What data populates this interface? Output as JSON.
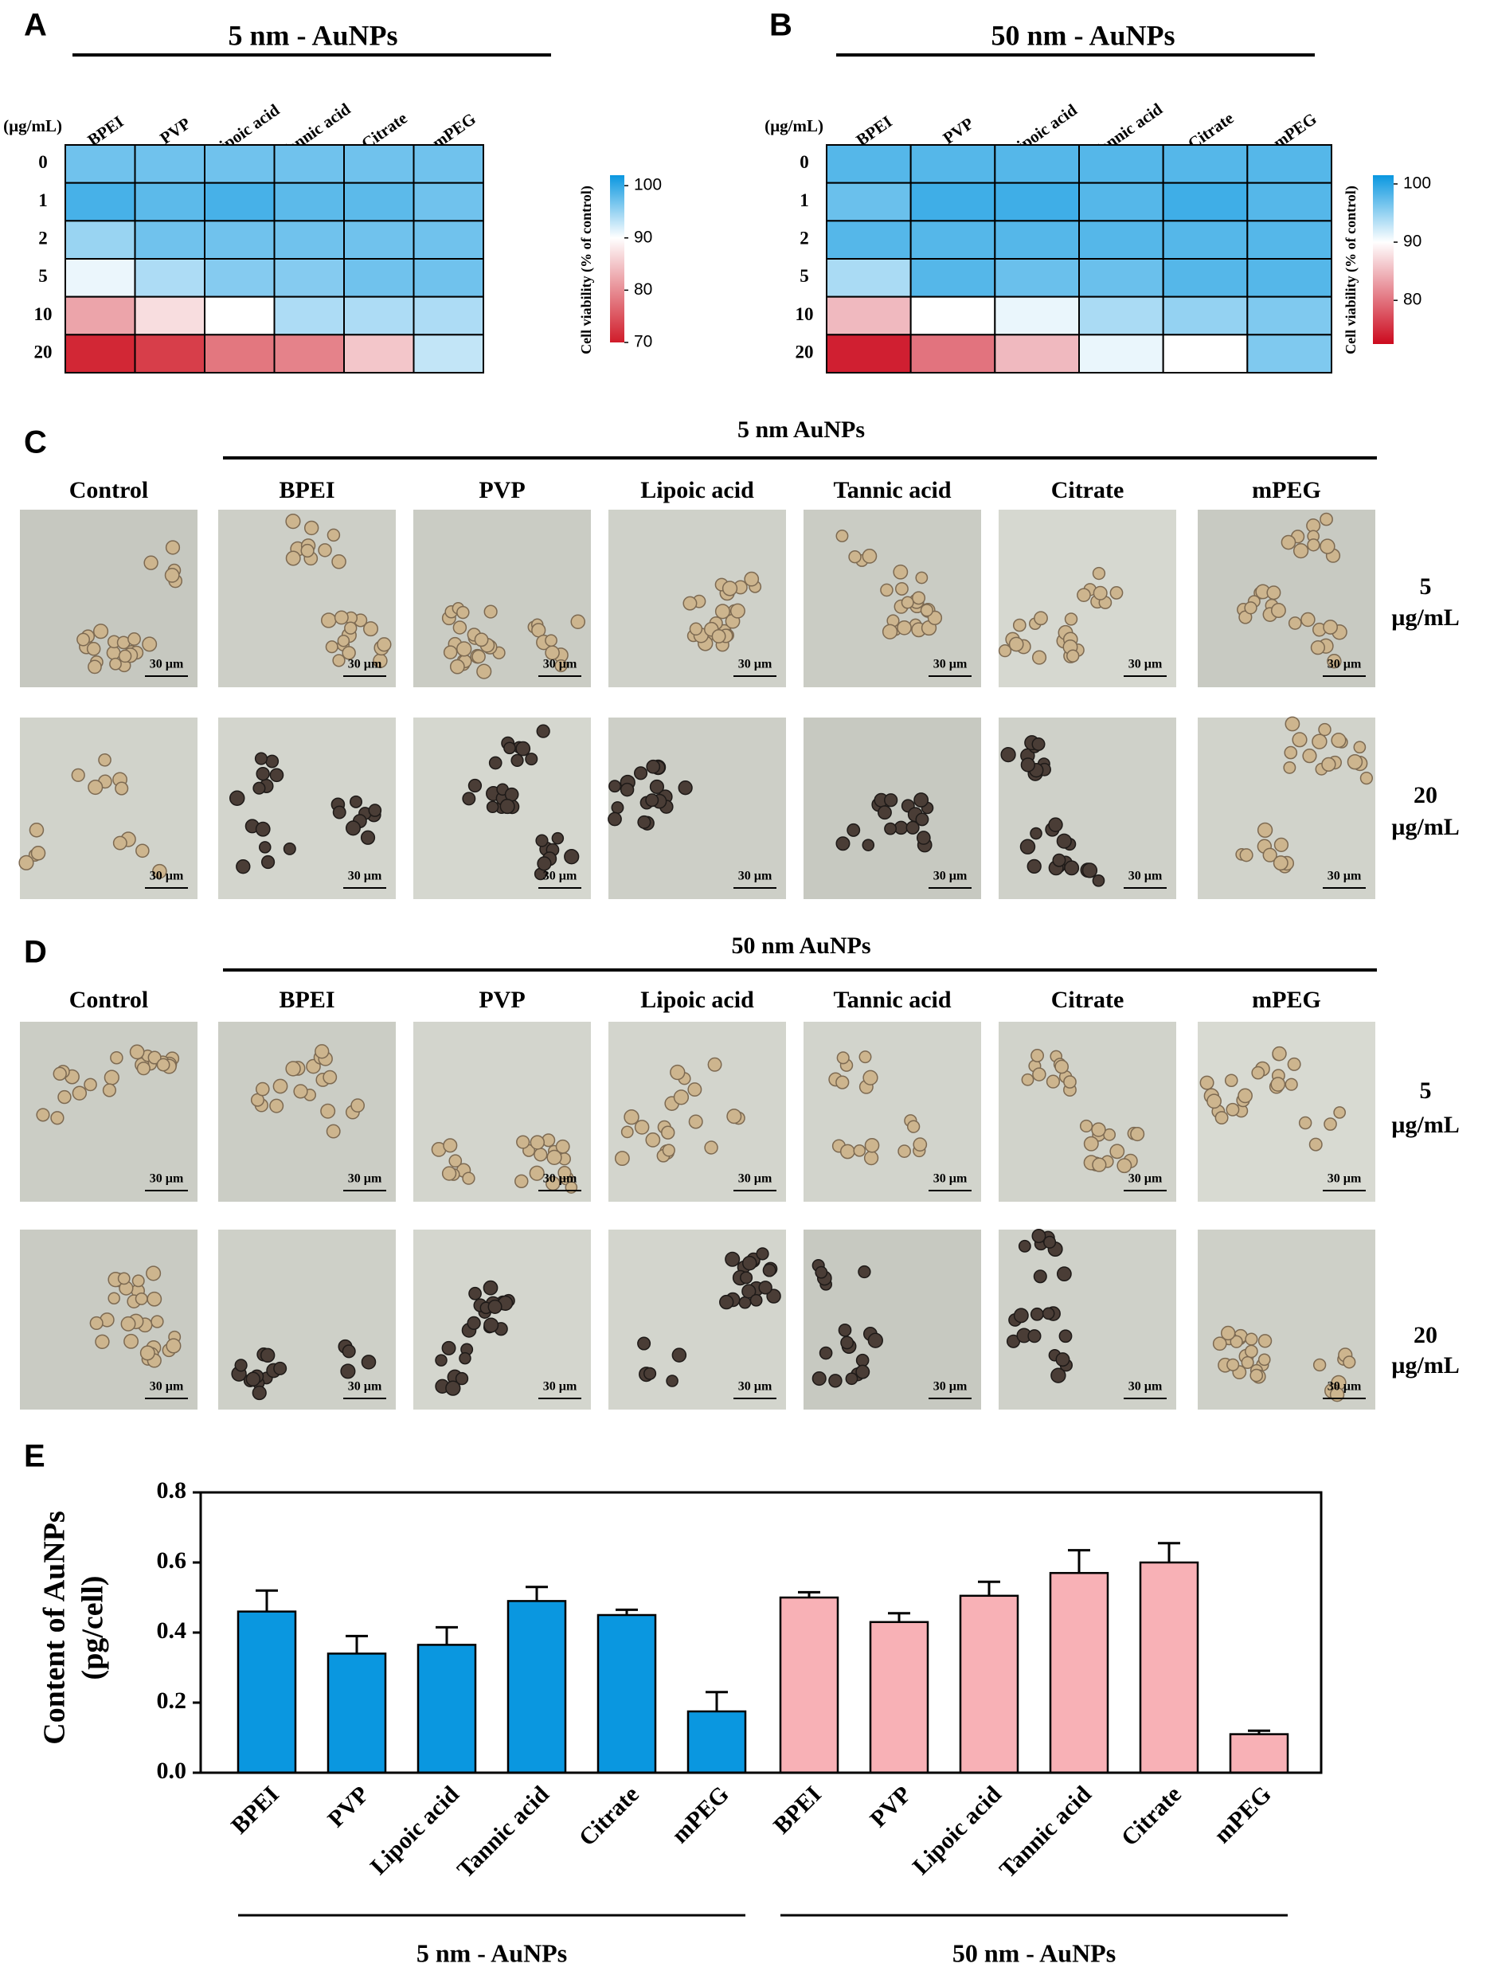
{
  "chart_data": [
    {
      "type": "heatmap",
      "panel_label": "A",
      "title": "5 nm - AuNPs",
      "y_unit": "(µg/mL)",
      "columns": [
        "BPEI",
        "PVP",
        "Lipoic acid",
        "Tannic acid",
        "Citrate",
        "mPEG"
      ],
      "rows": [
        "0",
        "1",
        "2",
        "5",
        "10",
        "20"
      ],
      "values": [
        [
          97,
          97,
          97,
          97,
          97,
          97
        ],
        [
          99,
          98,
          99,
          98,
          98,
          97
        ],
        [
          95,
          97,
          97,
          97,
          97,
          97
        ],
        [
          91,
          94,
          96,
          96,
          97,
          97
        ],
        [
          82,
          87,
          90,
          94,
          94,
          94
        ],
        [
          71,
          73,
          78,
          79,
          85,
          93
        ]
      ],
      "colorbar": {
        "label": "Cell viability (% of control)",
        "lim": [
          70,
          102
        ],
        "ticks": [
          100,
          90,
          80,
          70
        ]
      },
      "colorscale": [
        [
          70,
          "#d01c2a"
        ],
        [
          90,
          "#ffffff"
        ],
        [
          102,
          "#0a97e0"
        ]
      ]
    },
    {
      "type": "heatmap",
      "panel_label": "B",
      "title": "50 nm - AuNPs",
      "y_unit": "(µg/mL)",
      "columns": [
        "BPEI",
        "PVP",
        "Lipoic acid",
        "Tannic acid",
        "Citrate",
        "mPEG"
      ],
      "rows": [
        "0",
        "1",
        "2",
        "5",
        "10",
        "20"
      ],
      "values": [
        [
          98,
          98,
          98,
          98,
          98,
          98
        ],
        [
          97,
          99,
          99,
          98,
          99,
          98
        ],
        [
          98,
          98,
          98,
          98,
          98,
          98
        ],
        [
          94,
          98,
          97,
          97,
          98,
          98
        ],
        [
          85,
          90,
          91,
          94,
          95,
          96
        ],
        [
          74,
          80,
          85,
          91,
          90,
          96
        ]
      ],
      "colorbar": {
        "label": "Cell viability (% of control)",
        "lim": [
          72.5,
          101.5
        ],
        "ticks": [
          100,
          90,
          80
        ]
      },
      "colorscale": [
        [
          72.5,
          "#cc0a1e"
        ],
        [
          90,
          "#ffffff"
        ],
        [
          101.5,
          "#0a97e0"
        ]
      ]
    },
    {
      "type": "bar",
      "panel_label": "E",
      "ylabel": [
        "Content of AuNPs",
        "(pg/cell)"
      ],
      "categories": [
        "BPEI",
        "PVP",
        "Lipoic acid",
        "Tannic acid",
        "Citrate",
        "mPEG"
      ],
      "series": [
        {
          "name": "5 nm - AuNPs",
          "color": "#0a97e0",
          "values": [
            0.46,
            0.34,
            0.365,
            0.49,
            0.45,
            0.175
          ],
          "errors": [
            0.06,
            0.05,
            0.05,
            0.04,
            0.015,
            0.055
          ]
        },
        {
          "name": "50 nm - AuNPs",
          "color": "#f8b1b6",
          "values": [
            0.5,
            0.43,
            0.505,
            0.57,
            0.6,
            0.11
          ],
          "errors": [
            0.015,
            0.025,
            0.04,
            0.065,
            0.055,
            0.01
          ]
        }
      ],
      "ylim": [
        0,
        0.8
      ],
      "yticks": [
        {
          "value": 0,
          "label": "0.0"
        },
        0.2,
        0.4,
        0.6,
        0.8
      ]
    }
  ],
  "micrographs": [
    {
      "panel_label": "C",
      "title": "5 nm AuNPs",
      "columns": [
        "Control",
        "BPEI",
        "PVP",
        "Lipoic acid",
        "Tannic acid",
        "Citrate",
        "mPEG"
      ],
      "rows": [
        {
          "dose": "5",
          "unit": "µg/mL"
        },
        {
          "dose": "20",
          "unit": "µg/mL"
        }
      ],
      "scale_bar": "30 µm"
    },
    {
      "panel_label": "D",
      "title": "50 nm AuNPs",
      "columns": [
        "Control",
        "BPEI",
        "PVP",
        "Lipoic acid",
        "Tannic acid",
        "Citrate",
        "mPEG"
      ],
      "rows": [
        {
          "dose": "5",
          "unit": "µg/mL"
        },
        {
          "dose": "20",
          "unit": "µg/mL"
        }
      ],
      "scale_bar": "30 µm"
    }
  ]
}
